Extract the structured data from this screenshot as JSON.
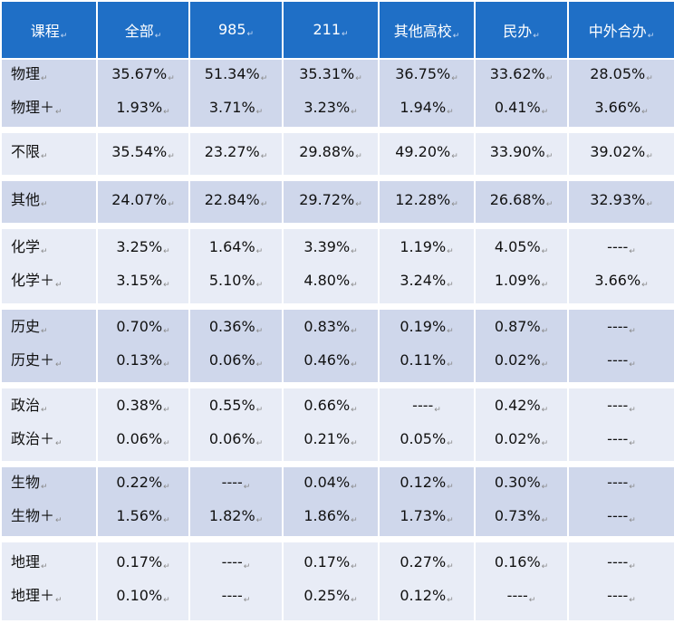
{
  "header": [
    "课程",
    "全部",
    "985",
    "211",
    "其他高校",
    "民办",
    "中外合办"
  ],
  "rows": [
    {
      "labels": [
        "物理",
        "物理＋"
      ],
      "cells": [
        [
          "35.67%",
          "1.93%"
        ],
        [
          "51.34%",
          "3.71%"
        ],
        [
          "35.31%",
          "3.23%"
        ],
        [
          "36.75%",
          "1.94%"
        ],
        [
          "33.62%",
          "0.41%"
        ],
        [
          "28.05%",
          "3.66%"
        ]
      ]
    },
    {
      "labels": [
        "不限"
      ],
      "cells": [
        [
          "35.54%"
        ],
        [
          "23.27%"
        ],
        [
          "29.88%"
        ],
        [
          "49.20%"
        ],
        [
          "33.90%"
        ],
        [
          "39.02%"
        ]
      ]
    },
    {
      "labels": [
        "其他"
      ],
      "cells": [
        [
          "24.07%"
        ],
        [
          "22.84%"
        ],
        [
          "29.72%"
        ],
        [
          "12.28%"
        ],
        [
          "26.68%"
        ],
        [
          "32.93%"
        ]
      ]
    },
    {
      "labels": [
        "化学",
        "化学＋"
      ],
      "cells": [
        [
          "3.25%",
          "3.15%"
        ],
        [
          "1.64%",
          "5.10%"
        ],
        [
          "3.39%",
          "4.80%"
        ],
        [
          "1.19%",
          "3.24%"
        ],
        [
          "4.05%",
          "1.09%"
        ],
        [
          "----",
          "3.66%"
        ]
      ]
    },
    {
      "labels": [
        "历史",
        "历史＋"
      ],
      "cells": [
        [
          "0.70%",
          "0.13%"
        ],
        [
          "0.36%",
          "0.06%"
        ],
        [
          "0.83%",
          "0.46%"
        ],
        [
          "0.19%",
          "0.11%"
        ],
        [
          "0.87%",
          "0.02%"
        ],
        [
          "----",
          "----"
        ]
      ]
    },
    {
      "labels": [
        "政治",
        "政治＋"
      ],
      "cells": [
        [
          "0.38%",
          "0.06%"
        ],
        [
          "0.55%",
          "0.06%"
        ],
        [
          "0.66%",
          "0.21%"
        ],
        [
          "----",
          "0.05%"
        ],
        [
          "0.42%",
          "0.02%"
        ],
        [
          "----",
          "----"
        ]
      ]
    },
    {
      "labels": [
        "生物",
        "生物＋"
      ],
      "cells": [
        [
          "0.22%",
          "1.56%"
        ],
        [
          "----",
          "1.82%"
        ],
        [
          "0.04%",
          "1.86%"
        ],
        [
          "0.12%",
          "1.73%"
        ],
        [
          "0.30%",
          "0.73%"
        ],
        [
          "----",
          "----"
        ]
      ]
    },
    {
      "labels": [
        "地理",
        "地理＋"
      ],
      "cells": [
        [
          "0.17%",
          "0.10%"
        ],
        [
          "----",
          "----"
        ],
        [
          "0.17%",
          "0.25%"
        ],
        [
          "0.27%",
          "0.12%"
        ],
        [
          "0.16%",
          "----"
        ],
        [
          "----",
          "----"
        ]
      ]
    }
  ],
  "colors": {
    "header_bg": "#1f6fc6",
    "row_dark": "#cfd7eb",
    "row_light": "#e8ecf6",
    "header_text": "#ffffff"
  },
  "icons": {
    "paragraph_mark": "carriage-return-icon"
  }
}
